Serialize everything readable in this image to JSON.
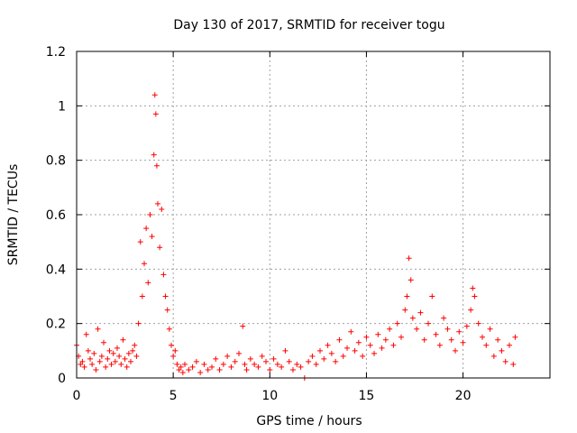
{
  "chart_data": {
    "type": "scatter",
    "title": "Day 130 of 2017, SRMTID for receiver togu",
    "xlabel": "GPS time / hours",
    "ylabel": "SRMTID / TECUs",
    "xlim": [
      0,
      24.5
    ],
    "ylim": [
      0,
      1.2
    ],
    "xticks": [
      0,
      5,
      10,
      15,
      20
    ],
    "xtick_labels": [
      "0",
      "5",
      "10",
      "15",
      "20"
    ],
    "yticks": [
      0,
      0.2,
      0.4,
      0.6,
      0.8,
      1,
      1.2
    ],
    "ytick_labels": [
      "0",
      "0.2",
      "0.4",
      "0.6",
      "0.8",
      "1",
      "1.2"
    ],
    "grid": true,
    "marker": "+",
    "series": [
      {
        "name": "togu",
        "color": "#ff0000",
        "x": [
          0.0,
          0.1,
          0.2,
          0.3,
          0.4,
          0.5,
          0.6,
          0.7,
          0.8,
          0.9,
          1.0,
          1.1,
          1.2,
          1.3,
          1.4,
          1.5,
          1.6,
          1.7,
          1.8,
          1.9,
          2.0,
          2.1,
          2.2,
          2.3,
          2.4,
          2.5,
          2.6,
          2.7,
          2.8,
          2.9,
          3.0,
          3.1,
          3.2,
          3.3,
          3.4,
          3.5,
          3.6,
          3.7,
          3.8,
          3.9,
          4.0,
          4.05,
          4.1,
          4.15,
          4.2,
          4.3,
          4.4,
          4.5,
          4.6,
          4.7,
          4.8,
          4.9,
          5.0,
          5.1,
          5.2,
          5.3,
          5.4,
          5.5,
          5.6,
          5.8,
          6.0,
          6.2,
          6.4,
          6.6,
          6.8,
          7.0,
          7.2,
          7.4,
          7.6,
          7.8,
          8.0,
          8.2,
          8.4,
          8.6,
          8.7,
          8.8,
          9.0,
          9.2,
          9.4,
          9.6,
          9.8,
          10.0,
          10.2,
          10.4,
          10.6,
          10.8,
          11.0,
          11.2,
          11.4,
          11.6,
          11.8,
          12.0,
          12.2,
          12.4,
          12.6,
          12.8,
          13.0,
          13.2,
          13.4,
          13.6,
          13.8,
          14.0,
          14.2,
          14.4,
          14.6,
          14.8,
          15.0,
          15.2,
          15.4,
          15.6,
          15.8,
          16.0,
          16.2,
          16.4,
          16.6,
          16.8,
          17.0,
          17.1,
          17.2,
          17.3,
          17.4,
          17.6,
          17.8,
          18.0,
          18.2,
          18.4,
          18.6,
          18.8,
          19.0,
          19.2,
          19.4,
          19.6,
          19.8,
          20.0,
          20.2,
          20.4,
          20.5,
          20.6,
          20.8,
          21.0,
          21.2,
          21.4,
          21.6,
          21.8,
          22.0,
          22.2,
          22.4,
          22.6,
          22.7
        ],
        "y": [
          0.12,
          0.08,
          0.05,
          0.06,
          0.04,
          0.16,
          0.1,
          0.07,
          0.05,
          0.09,
          0.03,
          0.18,
          0.06,
          0.08,
          0.13,
          0.04,
          0.07,
          0.1,
          0.05,
          0.09,
          0.06,
          0.11,
          0.08,
          0.05,
          0.14,
          0.07,
          0.04,
          0.09,
          0.06,
          0.1,
          0.12,
          0.08,
          0.2,
          0.5,
          0.3,
          0.42,
          0.55,
          0.35,
          0.6,
          0.52,
          0.82,
          1.04,
          0.97,
          0.78,
          0.64,
          0.48,
          0.62,
          0.38,
          0.3,
          0.25,
          0.18,
          0.12,
          0.08,
          0.1,
          0.05,
          0.03,
          0.04,
          0.02,
          0.05,
          0.03,
          0.04,
          0.06,
          0.02,
          0.05,
          0.03,
          0.04,
          0.07,
          0.03,
          0.05,
          0.08,
          0.04,
          0.06,
          0.09,
          0.19,
          0.05,
          0.03,
          0.07,
          0.05,
          0.04,
          0.08,
          0.06,
          0.03,
          0.07,
          0.05,
          0.04,
          0.1,
          0.06,
          0.03,
          0.05,
          0.04,
          0.0,
          0.06,
          0.08,
          0.05,
          0.1,
          0.07,
          0.12,
          0.09,
          0.06,
          0.14,
          0.08,
          0.11,
          0.17,
          0.1,
          0.13,
          0.08,
          0.15,
          0.12,
          0.09,
          0.16,
          0.11,
          0.14,
          0.18,
          0.12,
          0.2,
          0.15,
          0.25,
          0.3,
          0.44,
          0.36,
          0.22,
          0.18,
          0.24,
          0.14,
          0.2,
          0.3,
          0.16,
          0.12,
          0.22,
          0.18,
          0.14,
          0.1,
          0.17,
          0.13,
          0.19,
          0.25,
          0.33,
          0.3,
          0.2,
          0.15,
          0.12,
          0.18,
          0.08,
          0.14,
          0.1,
          0.06,
          0.12,
          0.05,
          0.15
        ]
      }
    ]
  }
}
